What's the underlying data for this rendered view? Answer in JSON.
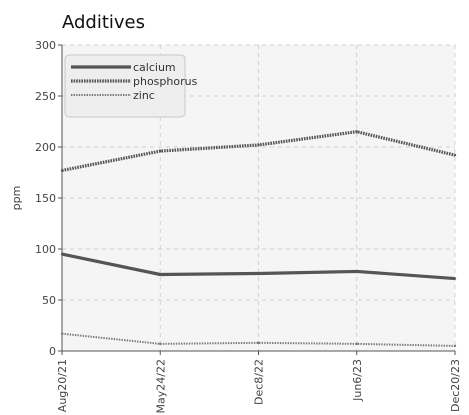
{
  "chart_data": {
    "type": "line",
    "title": "Additives",
    "xlabel": "",
    "ylabel": "ppm",
    "x": [
      "Aug20/21",
      "May24/22",
      "Dec8/22",
      "Jun6/23",
      "Dec20/23"
    ],
    "ylim": [
      0,
      300
    ],
    "yticks": [
      0,
      50,
      100,
      150,
      200,
      250,
      300
    ],
    "grid": true,
    "legend_position": "top-left",
    "series": [
      {
        "name": "calcium",
        "style": "solid",
        "color": "#555555",
        "points": [
          {
            "x": "Aug20/21",
            "y": 95
          },
          {
            "x": "May24/22",
            "y": 75
          },
          {
            "x": "Dec8/22",
            "y": 76
          },
          {
            "x": "Jun6/23",
            "y": 78
          },
          {
            "x": "Dec20/23",
            "y": 71
          }
        ]
      },
      {
        "name": "phosphorus",
        "style": "dotted-thick",
        "color": "#555555",
        "points": [
          {
            "x": "Aug20/21",
            "y": 177
          },
          {
            "x": "May24/22",
            "y": 196
          },
          {
            "x": "Dec8/22",
            "y": 202
          },
          {
            "x": "Jun6/23",
            "y": 215
          },
          {
            "x": "Dec20/23",
            "y": 192
          }
        ]
      },
      {
        "name": "zinc",
        "style": "dotted-thin",
        "color": "#777777",
        "points": [
          {
            "x": "Aug20/21",
            "y": 17
          },
          {
            "x": "May24/22",
            "y": 7
          },
          {
            "x": "Dec8/22",
            "y": 8
          },
          {
            "x": "Jun6/23",
            "y": 7
          },
          {
            "x": "Dec20/23",
            "y": 5
          }
        ]
      }
    ]
  }
}
